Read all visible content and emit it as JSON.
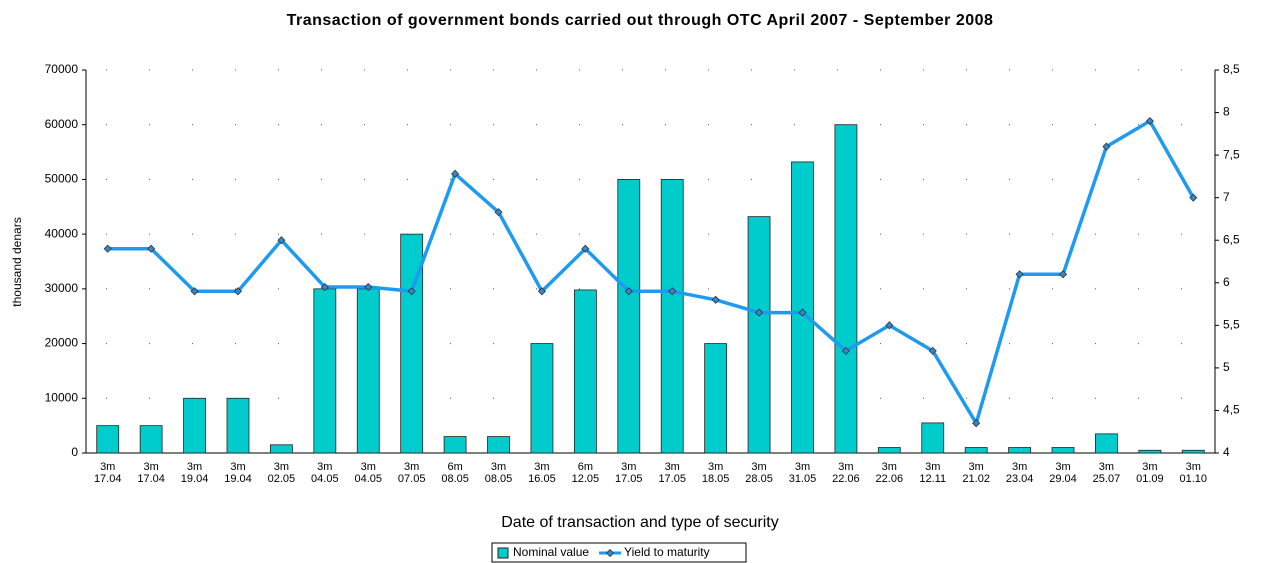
{
  "chart_data": {
    "type": "bar_line",
    "title": "Transaction of government bonds carried out through OTC April 2007 - September 2008",
    "x_label": "Date of transaction and type of security",
    "y_label": "thousand denars",
    "categories": [
      [
        "3m",
        "17.04"
      ],
      [
        "3m",
        "17.04"
      ],
      [
        "3m",
        "19.04"
      ],
      [
        "3m",
        "19.04"
      ],
      [
        "3m",
        "02.05"
      ],
      [
        "3m",
        "04.05"
      ],
      [
        "3m",
        "04.05"
      ],
      [
        "3m",
        "07.05"
      ],
      [
        "6m",
        "08.05"
      ],
      [
        "3m",
        "08.05"
      ],
      [
        "3m",
        "16.05"
      ],
      [
        "6m",
        "12.05"
      ],
      [
        "3m",
        "17.05"
      ],
      [
        "3m",
        "17.05"
      ],
      [
        "3m",
        "18.05"
      ],
      [
        "3m",
        "28.05"
      ],
      [
        "3m",
        "31.05"
      ],
      [
        "3m",
        "22.06"
      ],
      [
        "3m",
        "22.06"
      ],
      [
        "3m",
        "12.11"
      ],
      [
        "3m",
        "21.02"
      ],
      [
        "3m",
        "23.04"
      ],
      [
        "3m",
        "29.04"
      ],
      [
        "3m",
        "25.07"
      ],
      [
        "3m",
        "01.09"
      ],
      [
        "3m",
        "01.10"
      ]
    ],
    "series": [
      {
        "name": "Nominal value",
        "type": "bar",
        "color": "#00cccc",
        "values": [
          5000,
          5000,
          10000,
          10000,
          1500,
          30000,
          30000,
          40000,
          3000,
          3000,
          20000,
          29800,
          50000,
          50000,
          20000,
          43200,
          53200,
          60000,
          1000,
          5500,
          1000,
          1000,
          1000,
          3500,
          500,
          500
        ]
      },
      {
        "name": "Yield to maturity",
        "type": "line",
        "axis": "y2",
        "color": "#1e9bf0",
        "values": [
          6.4,
          6.4,
          5.9,
          5.9,
          6.5,
          5.95,
          5.95,
          5.9,
          7.28,
          6.83,
          5.9,
          6.4,
          5.9,
          5.9,
          5.8,
          5.65,
          5.65,
          5.2,
          5.5,
          5.2,
          4.35,
          6.1,
          6.1,
          7.6,
          7.9,
          7.0
        ]
      }
    ],
    "ylim": [
      0,
      70000
    ],
    "yticks": [
      0,
      10000,
      20000,
      30000,
      40000,
      50000,
      60000,
      70000
    ],
    "y2lim": [
      4,
      8.5
    ],
    "y2ticks": [
      4,
      {
        "value": 4.5,
        "label": "4,5"
      },
      5,
      {
        "value": 5.5,
        "label": "5,5"
      },
      6,
      {
        "value": 6.5,
        "label": "6,5"
      },
      7,
      {
        "value": 7.5,
        "label": "7,5"
      },
      8,
      {
        "value": 8.5,
        "label": "8,5"
      }
    ],
    "grid": true,
    "legend": "bottom"
  }
}
